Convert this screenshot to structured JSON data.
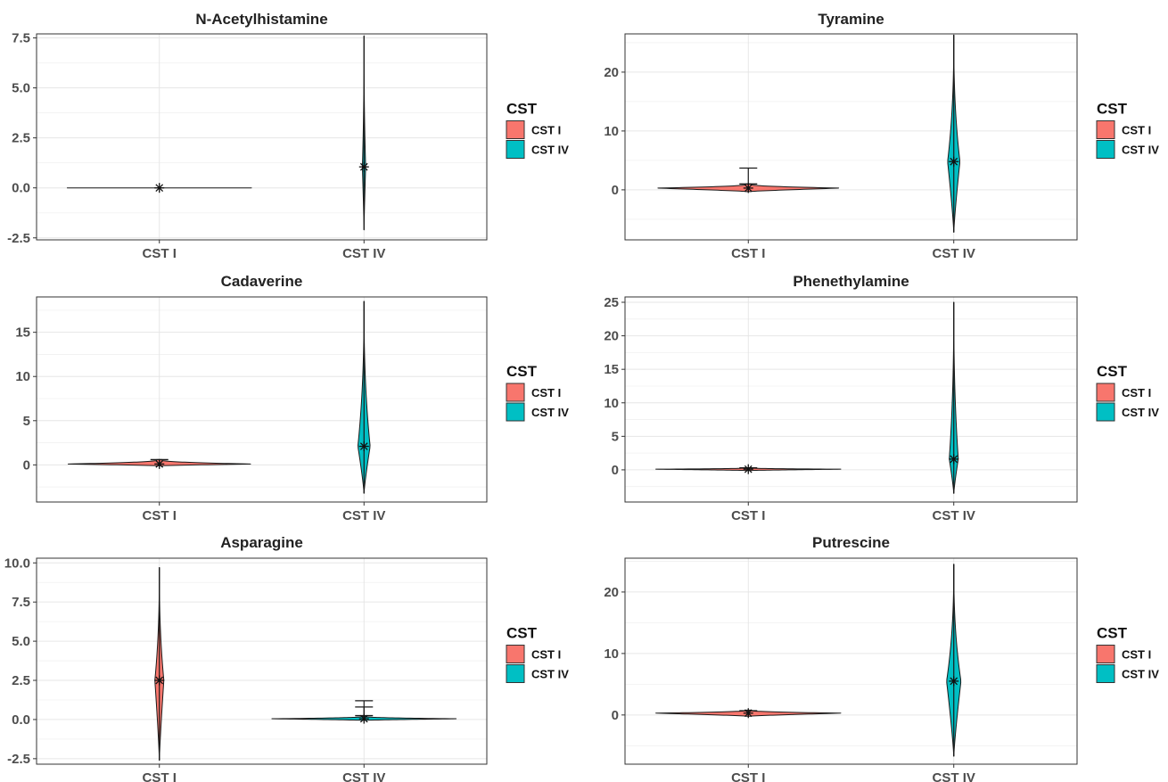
{
  "legend": {
    "title": "CST",
    "entries": [
      {
        "label": "CST I",
        "color": "#F8766D"
      },
      {
        "label": "CST IV",
        "color": "#00BFC4"
      }
    ]
  },
  "chart_data": [
    {
      "type": "violin",
      "title": "N-Acetylhistamine",
      "categories": [
        "CST I",
        "CST IV"
      ],
      "ylim": [
        -2.6,
        7.7
      ],
      "yticks": [
        -2.5,
        0.0,
        2.5,
        5.0,
        7.5
      ],
      "ytick_labels": [
        "-2.5",
        "0.0",
        "2.5",
        "5.0",
        "7.5"
      ],
      "series": [
        {
          "category": "CST I",
          "mean": 0.0,
          "violin_min": 0.0,
          "violin_max": 0.0,
          "max_halfwidth": 0.45,
          "whiskers": []
        },
        {
          "category": "CST IV",
          "mean": 1.05,
          "violin_min": -2.1,
          "violin_max": 7.6,
          "max_halfwidth": 0.008,
          "whiskers": []
        }
      ]
    },
    {
      "type": "violin",
      "title": "Tyramine",
      "categories": [
        "CST I",
        "CST IV"
      ],
      "ylim": [
        -8.5,
        26.5
      ],
      "yticks": [
        0,
        10,
        20
      ],
      "ytick_labels": [
        "0",
        "10",
        "20"
      ],
      "series": [
        {
          "category": "CST I",
          "mean": 0.3,
          "violin_min": -0.3,
          "violin_max": 1.0,
          "max_halfwidth": 0.45,
          "whiskers": [
            3.7,
            1.0
          ]
        },
        {
          "category": "CST IV",
          "mean": 4.8,
          "violin_min": -7.2,
          "violin_max": 26.3,
          "max_halfwidth": 0.03,
          "whiskers": []
        }
      ]
    },
    {
      "type": "violin",
      "title": "Cadaverine",
      "categories": [
        "CST I",
        "CST IV"
      ],
      "ylim": [
        -4.2,
        19.0
      ],
      "yticks": [
        0,
        5,
        10,
        15
      ],
      "ytick_labels": [
        "0",
        "5",
        "10",
        "15"
      ],
      "series": [
        {
          "category": "CST I",
          "mean": 0.1,
          "violin_min": -0.1,
          "violin_max": 0.6,
          "max_halfwidth": 0.45,
          "whiskers": [
            0.6
          ]
        },
        {
          "category": "CST IV",
          "mean": 2.1,
          "violin_min": -3.2,
          "violin_max": 18.5,
          "max_halfwidth": 0.03,
          "whiskers": []
        }
      ]
    },
    {
      "type": "violin",
      "title": "Phenethylamine",
      "categories": [
        "CST I",
        "CST IV"
      ],
      "ylim": [
        -4.8,
        25.8
      ],
      "yticks": [
        0,
        5,
        10,
        15,
        20,
        25
      ],
      "ytick_labels": [
        "0",
        "5",
        "10",
        "15",
        "20",
        "25"
      ],
      "series": [
        {
          "category": "CST I",
          "mean": 0.1,
          "violin_min": -0.1,
          "violin_max": 0.3,
          "max_halfwidth": 0.45,
          "whiskers": [
            0.3
          ]
        },
        {
          "category": "CST IV",
          "mean": 1.6,
          "violin_min": -3.5,
          "violin_max": 25.0,
          "max_halfwidth": 0.022,
          "whiskers": []
        }
      ]
    },
    {
      "type": "violin",
      "title": "Asparagine",
      "categories": [
        "CST I",
        "CST IV"
      ],
      "ylim": [
        -2.85,
        10.3
      ],
      "yticks": [
        -2.5,
        0.0,
        2.5,
        5.0,
        7.5,
        10.0
      ],
      "ytick_labels": [
        "-2.5",
        "0.0",
        "2.5",
        "5.0",
        "7.5",
        "10.0"
      ],
      "series": [
        {
          "category": "CST I",
          "mean": 2.5,
          "violin_min": -2.6,
          "violin_max": 9.7,
          "max_halfwidth": 0.022,
          "whiskers": []
        },
        {
          "category": "CST IV",
          "mean": 0.05,
          "violin_min": -0.05,
          "violin_max": 0.2,
          "max_halfwidth": 0.45,
          "whiskers": [
            1.2,
            0.8,
            0.25
          ]
        }
      ]
    },
    {
      "type": "violin",
      "title": "Putrescine",
      "categories": [
        "CST I",
        "CST IV"
      ],
      "ylim": [
        -8.0,
        25.5
      ],
      "yticks": [
        0,
        10,
        20
      ],
      "ytick_labels": [
        "0",
        "10",
        "20"
      ],
      "series": [
        {
          "category": "CST I",
          "mean": 0.3,
          "violin_min": -0.2,
          "violin_max": 0.8,
          "max_halfwidth": 0.45,
          "whiskers": [
            0.7
          ]
        },
        {
          "category": "CST IV",
          "mean": 5.5,
          "violin_min": -6.7,
          "violin_max": 24.5,
          "max_halfwidth": 0.035,
          "whiskers": []
        }
      ]
    }
  ]
}
